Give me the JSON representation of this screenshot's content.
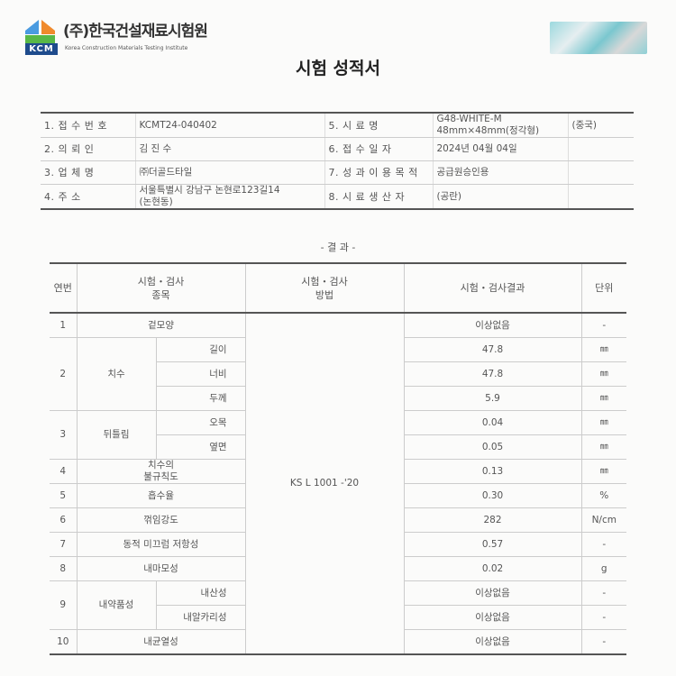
{
  "header": {
    "org_name": "(주)한국건설재료시험원",
    "org_name_en": "Korea Construction Materials Testing Institute",
    "logo_text": "KCM",
    "doc_title": "시험 성적서"
  },
  "info": [
    {
      "label": "1. 접 수 번 호",
      "value": "KCMT24-040402",
      "label2": "5. 시 료 명",
      "value2": "G48-WHITE-M\n48mm×48mm(정각형)",
      "extra": "(중국)"
    },
    {
      "label": "2. 의 뢰 인",
      "value": "김 진 수",
      "label2": "6. 접 수 일 자",
      "value2": "2024년 04월 04일",
      "extra": ""
    },
    {
      "label": "3. 업 체 명",
      "value": "㈜더골드타일",
      "label2": "7. 성 과 이 용 목 적",
      "value2": "공급원승인용",
      "extra": ""
    },
    {
      "label": "4. 주 소",
      "value": "서울특별시 강남구 논현로123길14\n(논현동)",
      "label2": "8. 시 료 생 산 자",
      "value2": "(공란)",
      "extra": ""
    }
  ],
  "section_title": "- 결   과 -",
  "results": {
    "headers": {
      "no": "연번",
      "item": "시험・검사\n종목",
      "method": "시험・검사\n방법",
      "result": "시험・검사결과",
      "unit": "단위"
    },
    "method": "KS L 1001 -'20",
    "rows": [
      {
        "no": "1",
        "item": "겉모양",
        "result": "이상없음",
        "unit": "-"
      },
      {
        "no": "2",
        "item": "치수",
        "sub": "길이",
        "result": "47.8",
        "unit": "㎜"
      },
      {
        "sub": "너비",
        "result": "47.8",
        "unit": "㎜"
      },
      {
        "sub": "두께",
        "result": "5.9",
        "unit": "㎜"
      },
      {
        "no": "3",
        "item": "뒤틀림",
        "sub": "오목",
        "result": "0.04",
        "unit": "㎜"
      },
      {
        "sub": "옆면",
        "result": "0.05",
        "unit": "㎜"
      },
      {
        "no": "4",
        "item": "치수의\n불규칙도",
        "result": "0.13",
        "unit": "㎜"
      },
      {
        "no": "5",
        "item": "흡수율",
        "result": "0.30",
        "unit": "%"
      },
      {
        "no": "6",
        "item": "꺾임강도",
        "result": "282",
        "unit": "N/cm"
      },
      {
        "no": "7",
        "item": "동적 미끄럼 저항성",
        "result": "0.57",
        "unit": "-"
      },
      {
        "no": "8",
        "item": "내마모성",
        "result": "0.02",
        "unit": "g"
      },
      {
        "no": "9",
        "item": "내약품성",
        "sub": "내산성",
        "result": "이상없음",
        "unit": "-"
      },
      {
        "sub": "내알카리성",
        "result": "이상없음",
        "unit": "-"
      },
      {
        "no": "10",
        "item": "내균열성",
        "result": "이상없음",
        "unit": "-"
      }
    ]
  }
}
